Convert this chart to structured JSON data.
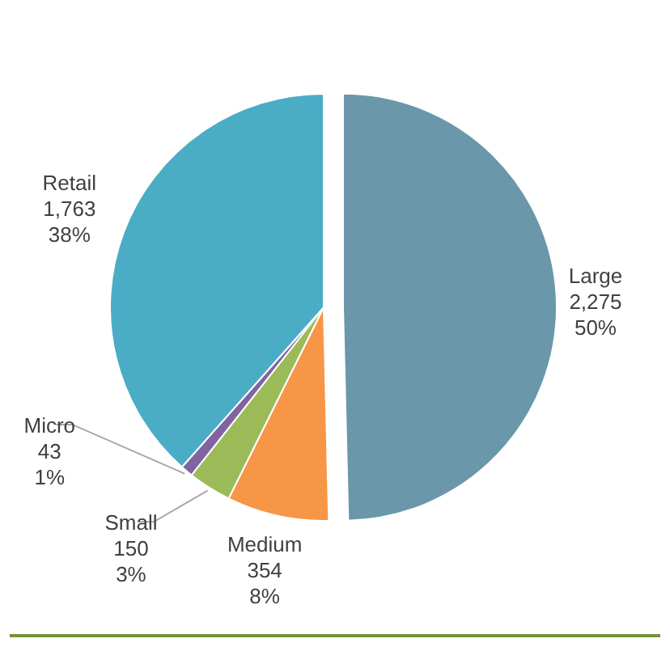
{
  "chart_data": {
    "type": "pie",
    "categories": [
      "Large",
      "Medium",
      "Small",
      "Micro",
      "Retail"
    ],
    "values": [
      2275,
      354,
      150,
      43,
      1763
    ],
    "colors": [
      "#6a97aa",
      "#f79646",
      "#9bbb59",
      "#8064a2",
      "#4bacc6"
    ],
    "value_labels": [
      "2,275\n50%",
      "354\n8%",
      "150\n3%",
      "43\n1%",
      "1,763\n38%"
    ],
    "legend": false
  }
}
